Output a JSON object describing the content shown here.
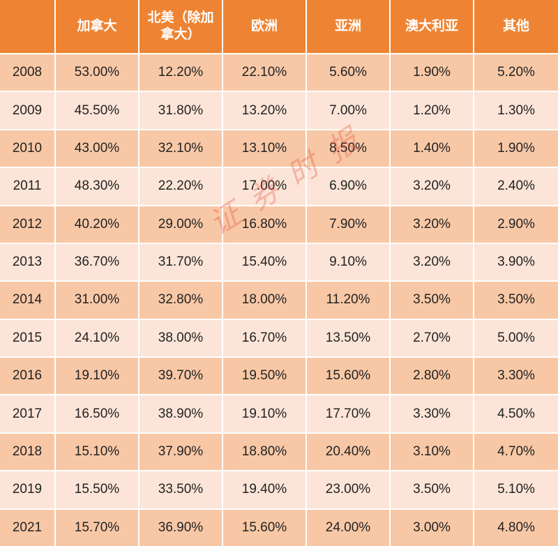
{
  "chart_data": {
    "type": "table",
    "columns": [
      "",
      "加拿大",
      "北美（除加拿大）",
      "欧洲",
      "亚洲",
      "澳大利亚",
      "其他"
    ],
    "rows": [
      [
        "2008",
        "53.00%",
        "12.20%",
        "22.10%",
        "5.60%",
        "1.90%",
        "5.20%"
      ],
      [
        "2009",
        "45.50%",
        "31.80%",
        "13.20%",
        "7.00%",
        "1.20%",
        "1.30%"
      ],
      [
        "2010",
        "43.00%",
        "32.10%",
        "13.10%",
        "8.50%",
        "1.40%",
        "1.90%"
      ],
      [
        "2011",
        "48.30%",
        "22.20%",
        "17.00%",
        "6.90%",
        "3.20%",
        "2.40%"
      ],
      [
        "2012",
        "40.20%",
        "29.00%",
        "16.80%",
        "7.90%",
        "3.20%",
        "2.90%"
      ],
      [
        "2013",
        "36.70%",
        "31.70%",
        "15.40%",
        "9.10%",
        "3.20%",
        "3.90%"
      ],
      [
        "2014",
        "31.00%",
        "32.80%",
        "18.00%",
        "11.20%",
        "3.50%",
        "3.50%"
      ],
      [
        "2015",
        "24.10%",
        "38.00%",
        "16.70%",
        "13.50%",
        "2.70%",
        "5.00%"
      ],
      [
        "2016",
        "19.10%",
        "39.70%",
        "19.50%",
        "15.60%",
        "2.80%",
        "3.30%"
      ],
      [
        "2017",
        "16.50%",
        "38.90%",
        "19.10%",
        "17.70%",
        "3.30%",
        "4.50%"
      ],
      [
        "2018",
        "15.10%",
        "37.90%",
        "18.80%",
        "20.40%",
        "3.10%",
        "4.70%"
      ],
      [
        "2019",
        "15.50%",
        "33.50%",
        "19.40%",
        "23.00%",
        "3.50%",
        "5.10%"
      ],
      [
        "2021",
        "15.70%",
        "36.90%",
        "15.60%",
        "24.00%",
        "3.00%",
        "4.80%"
      ]
    ]
  },
  "watermark": {
    "text": "证券时报",
    "color": "#e03c2c"
  },
  "colors": {
    "header_bg": "#ee8433",
    "header_text": "#ffffff",
    "row_odd_bg": "#f8c8a6",
    "row_even_bg": "#fce5d8",
    "cell_text": "#222222"
  }
}
